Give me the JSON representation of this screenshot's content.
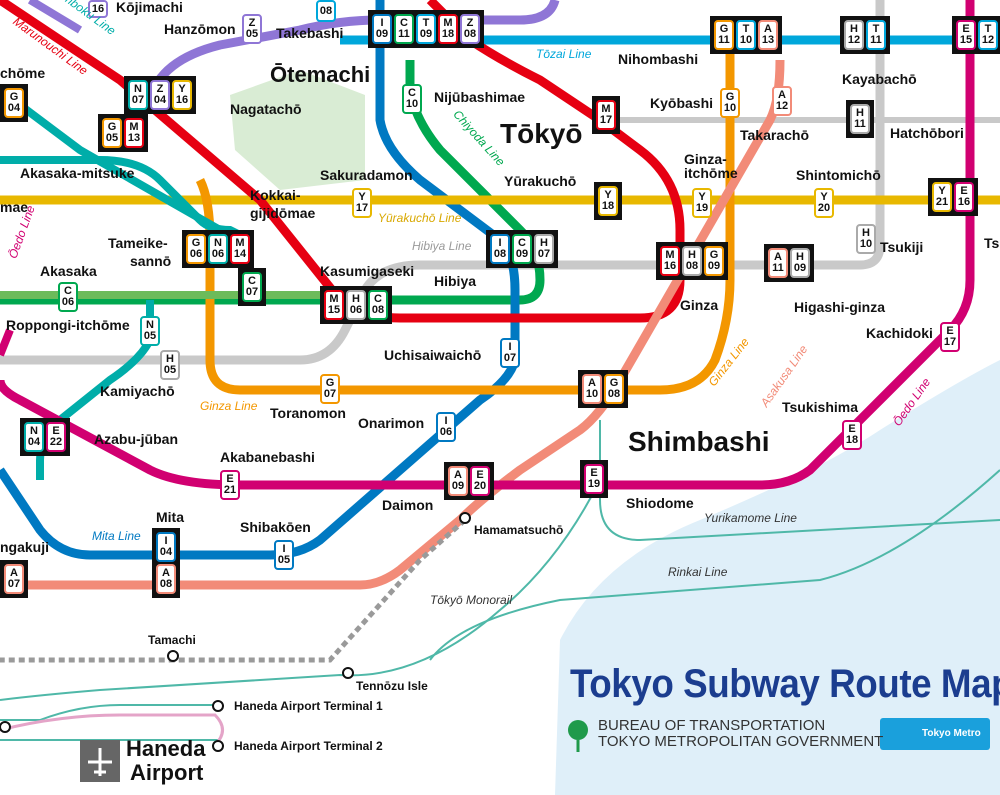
{
  "map_title": "Tokyo Subway Route Map",
  "bureau_line1": "BUREAU OF TRANSPORTATION",
  "bureau_line2": "TOKYO METROPOLITAN GOVERNMENT",
  "metro_badge": "Tokyo Metro",
  "colors": {
    "ginza": "#f39700",
    "marunouchi": "#e60012",
    "hibiya": "#9caeb7",
    "tozai": "#00a7db",
    "chiyoda": "#009944",
    "yurakucho": "#d7c447",
    "hanzomon": "#9b7cb6",
    "namboku": "#00ada9",
    "asakusa": "#e85298",
    "mita": "#0079c2",
    "shinjuku": "#6cbb5a",
    "oedo": "#b6007a",
    "asakusa_line": "#e9546b"
  },
  "stations": {
    "otemachi": "Ōtemachi",
    "tokyo": "Tōkyō",
    "shimbashi": "Shimbashi",
    "haneda": "Haneda",
    "airport": "Airport",
    "nihombashi": "Nihombashi",
    "kayabacho": "Kayabachō",
    "hanzomon": "Hanzōmon",
    "takebashi": "Takebashi",
    "nagatacho": "Nagatachō",
    "akasaka_mitsuke": "Akasaka-mitsuke",
    "kokkai": "Kokkai-",
    "gijidomae": "gijidōmae",
    "sakuradamon": "Sakuradamon",
    "nijubashimae": "Nijūbashimae",
    "kyobashi": "Kyōbashi",
    "takaracho": "Takarachō",
    "hatchobori": "Hatchōbori",
    "yurakucho": "Yūrakuchō",
    "ginza_itchome": "Ginza-itchōme",
    "shintomicho": "Shintomichō",
    "tameike": "Tameike-",
    "sanno": "sannō",
    "akasaka": "Akasaka",
    "kasumigaseki": "Kasumigaseki",
    "hibiya": "Hibiya",
    "tsukiji": "Tsukiji",
    "ginza": "Ginza",
    "higashi_ginza": "Higashi-ginza",
    "kachidoki": "Kachidoki",
    "roppongi_itchome": "Roppongi-itchōme",
    "uchisaiwaicho": "Uchisaiwaichō",
    "kamiyacho": "Kamiyachō",
    "toranomon": "Toranomon",
    "onarimon": "Onarimon",
    "tsukishima": "Tsukishima",
    "azabu_juban": "Azabu-jūban",
    "akabanebashi": "Akabanebashi",
    "daimon": "Daimon",
    "shiodome": "Shiodome",
    "hamamatsucho": "Hamamatsuchō",
    "mita": "Mita",
    "shibakoen": "Shibakōen",
    "sengakuji": "ngakuji",
    "tamachi": "Tamachi",
    "tennozu": "Tennōzu Isle",
    "haneda_t1": "Haneda Airport Terminal 1",
    "haneda_t2": "Haneda Airport Terminal 2",
    "chome": "chōme",
    "mae": "mae",
    "ts": "Ts",
    "kojimachi": "Kōjimachi"
  },
  "line_labels": {
    "tozai": "Tōzai Line",
    "chiyoda": "Chiyoda Line",
    "yurakucho": "Yūrakuchō Line",
    "hibiya": "Hibiya Line",
    "ginza": "Ginza Line",
    "ginza2": "Ginza Line",
    "asakusa": "Asakusa Line",
    "oedo": "Ōedo Line",
    "oedo_left": "Ōedo Line",
    "mita": "Mita Line",
    "yurikamome": "Yurikamome Line",
    "rinkai": "Rinkai Line",
    "monorail": "Tōkyō Monorail",
    "marunouchi": "Marunouchi Line",
    "namboku": "mboku Line"
  },
  "codes": {
    "top_left": {
      "l": "",
      "n": "16"
    },
    "hanzomon_z05": {
      "l": "Z",
      "n": "05"
    },
    "takebashi_t08": {
      "l": "T",
      "n": "08"
    },
    "otemachi": [
      {
        "l": "I",
        "n": "09"
      },
      {
        "l": "C",
        "n": "11"
      },
      {
        "l": "T",
        "n": "09"
      },
      {
        "l": "M",
        "n": "18"
      },
      {
        "l": "Z",
        "n": "08"
      }
    ],
    "nihombashi": [
      {
        "l": "G",
        "n": "11"
      },
      {
        "l": "T",
        "n": "10"
      },
      {
        "l": "A",
        "n": "13"
      }
    ],
    "kayabacho": [
      {
        "l": "H",
        "n": "12"
      },
      {
        "l": "T",
        "n": "11"
      }
    ],
    "far_right": [
      {
        "l": "E",
        "n": "15"
      },
      {
        "l": "T",
        "n": "12"
      }
    ],
    "left_g04": {
      "l": "G",
      "n": "04"
    },
    "nagatacho": [
      {
        "l": "N",
        "n": "07"
      },
      {
        "l": "Z",
        "n": "04"
      },
      {
        "l": "Y",
        "n": "16"
      }
    ],
    "akasaka_mitsuke": [
      {
        "l": "G",
        "n": "05"
      },
      {
        "l": "M",
        "n": "13"
      }
    ],
    "nijubashimae_c10": {
      "l": "C",
      "n": "10"
    },
    "tokyo_m17": {
      "l": "M",
      "n": "17"
    },
    "kyobashi_g10": {
      "l": "G",
      "n": "10"
    },
    "takaracho_a12": {
      "l": "A",
      "n": "12"
    },
    "hatchobori_h11": {
      "l": "H",
      "n": "11"
    },
    "kokkai_y17": {
      "l": "Y",
      "n": "17"
    },
    "yurakucho_y18": {
      "l": "Y",
      "n": "18"
    },
    "ginza_itchome_y19": {
      "l": "Y",
      "n": "19"
    },
    "shintomicho_y20": {
      "l": "Y",
      "n": "20"
    },
    "tsukishima": [
      {
        "l": "Y",
        "n": "21"
      },
      {
        "l": "E",
        "n": "16"
      }
    ],
    "tameike": [
      {
        "l": "G",
        "n": "06"
      },
      {
        "l": "N",
        "n": "06"
      },
      {
        "l": "M",
        "n": "14"
      }
    ],
    "tameike_c07": {
      "l": "C",
      "n": "07"
    },
    "akasaka_c06": {
      "l": "C",
      "n": "06"
    },
    "hibiya": [
      {
        "l": "I",
        "n": "08"
      },
      {
        "l": "C",
        "n": "09"
      },
      {
        "l": "H",
        "n": "07"
      }
    ],
    "tsukiji_h10": {
      "l": "H",
      "n": "10"
    },
    "ginza": [
      {
        "l": "M",
        "n": "16"
      },
      {
        "l": "H",
        "n": "08"
      },
      {
        "l": "G",
        "n": "09"
      }
    ],
    "higashi_ginza": [
      {
        "l": "A",
        "n": "11"
      },
      {
        "l": "H",
        "n": "09"
      }
    ],
    "kasumigaseki": [
      {
        "l": "M",
        "n": "15"
      },
      {
        "l": "H",
        "n": "06"
      },
      {
        "l": "C",
        "n": "08"
      }
    ],
    "roppongi_n05": {
      "l": "N",
      "n": "05"
    },
    "kamiyacho_h05": {
      "l": "H",
      "n": "05"
    },
    "uchisaiwaicho_i07": {
      "l": "I",
      "n": "07"
    },
    "kachidoki_e17": {
      "l": "E",
      "n": "17"
    },
    "toranomon_g07": {
      "l": "G",
      "n": "07"
    },
    "shimbashi": [
      {
        "l": "A",
        "n": "10"
      },
      {
        "l": "G",
        "n": "08"
      }
    ],
    "onarimon_i06": {
      "l": "I",
      "n": "06"
    },
    "tsukiji_shijo_e18": {
      "l": "E",
      "n": "18"
    },
    "azabu": [
      {
        "l": "N",
        "n": "04"
      },
      {
        "l": "E",
        "n": "22"
      }
    ],
    "akabanebashi_e21": {
      "l": "E",
      "n": "21"
    },
    "daimon": [
      {
        "l": "A",
        "n": "09"
      },
      {
        "l": "E",
        "n": "20"
      }
    ],
    "shiodome_e19": {
      "l": "E",
      "n": "19"
    },
    "mita": [
      {
        "l": "I",
        "n": "04"
      },
      {
        "l": "A",
        "n": "08"
      }
    ],
    "shibakoen_i05": {
      "l": "I",
      "n": "05"
    },
    "sengakuji_a07": {
      "l": "A",
      "n": "07"
    }
  }
}
